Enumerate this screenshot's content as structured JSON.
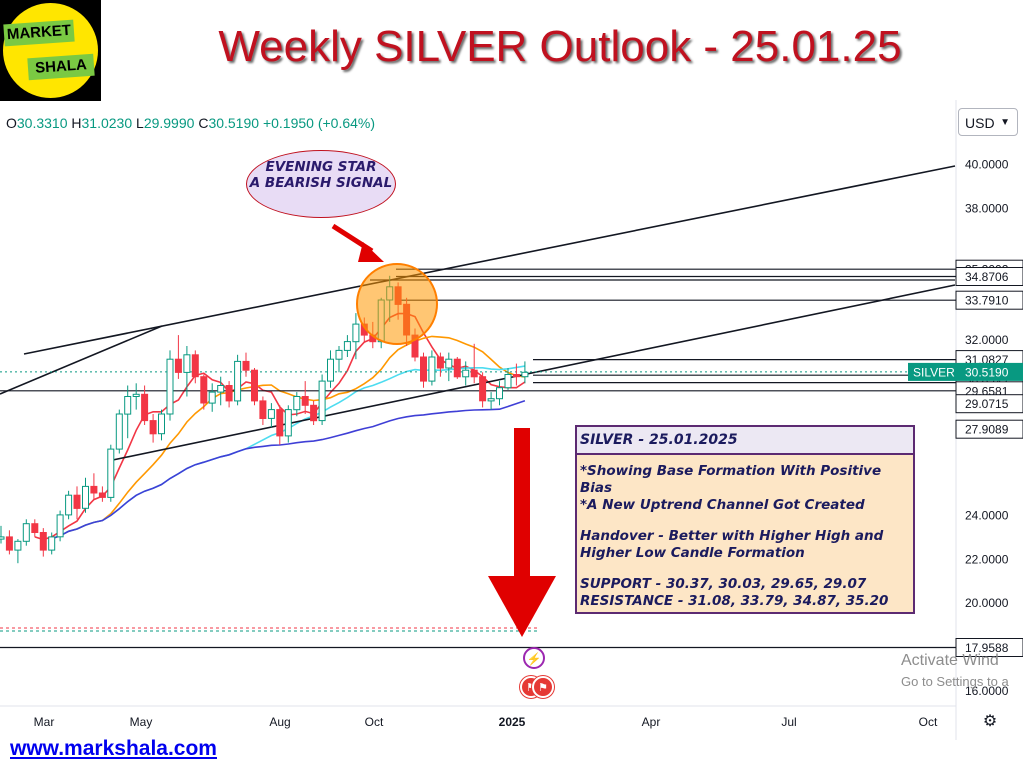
{
  "logo": {
    "line1": "MARKET",
    "line2": "SHALA"
  },
  "title": "Weekly SILVER Outlook - 25.01.25",
  "ohlc": {
    "o": "30.3310",
    "h": "31.0230",
    "l": "29.9990",
    "c": "30.5190",
    "chg": "+0.1950 (+0.64%)"
  },
  "currency": "USD",
  "website": "www.markshala.com",
  "activate": {
    "line1": "Activate Wind",
    "line2": "Go to Settings to a"
  },
  "note": {
    "line1": "EVENING STAR",
    "line2": "A BEARISH SIGNAL"
  },
  "infobox": {
    "header": "SILVER - 25.01.2025",
    "lines": [
      "*Showing Base Formation With Positive Bias",
      "*A New Uptrend Channel Got Created",
      "",
      "Handover - Better with Higher High and",
      "Higher Low Candle Formation",
      "",
      "SUPPORT - 30.37, 30.03, 29.65, 29.07",
      "RESISTANCE - 31.08, 33.79, 34.87, 35.20"
    ]
  },
  "chart_data": {
    "type": "candlestick",
    "symbol": "SILVER",
    "last_price": "30.5190",
    "x_ticks": [
      "Mar",
      "May",
      "Aug",
      "Oct",
      "2025",
      "Apr",
      "Jul",
      "Oct"
    ],
    "y_ticks": [
      "40.0000",
      "38.0000",
      "32.0000",
      "24.0000",
      "22.0000",
      "20.0000",
      "16.0000"
    ],
    "levels": [
      "35.2002",
      "34.8706",
      "33.7910",
      "31.0827",
      "30.3700",
      "30.0347",
      "29.6581",
      "29.0715",
      "27.9089",
      "17.9588"
    ],
    "ylim": [
      15.2,
      41
    ],
    "candles": [
      [
        22.9,
        23.5,
        22.7,
        23.0
      ],
      [
        23.0,
        23.3,
        22.2,
        22.4
      ],
      [
        22.4,
        22.9,
        21.8,
        22.8
      ],
      [
        22.8,
        23.8,
        22.6,
        23.6
      ],
      [
        23.6,
        23.8,
        23.0,
        23.2
      ],
      [
        23.2,
        23.4,
        22.1,
        22.4
      ],
      [
        22.4,
        23.2,
        22.2,
        23.0
      ],
      [
        23.0,
        24.2,
        22.8,
        24.0
      ],
      [
        24.0,
        25.1,
        23.8,
        24.9
      ],
      [
        24.9,
        25.3,
        23.8,
        24.3
      ],
      [
        24.3,
        25.7,
        24.1,
        25.3
      ],
      [
        25.3,
        25.9,
        24.7,
        25.0
      ],
      [
        25.0,
        25.3,
        24.6,
        24.8
      ],
      [
        24.8,
        27.2,
        24.6,
        27.0
      ],
      [
        27.0,
        28.8,
        26.8,
        28.6
      ],
      [
        28.6,
        29.9,
        27.5,
        29.4
      ],
      [
        29.4,
        30.0,
        28.8,
        29.5
      ],
      [
        29.5,
        29.9,
        28.1,
        28.3
      ],
      [
        28.3,
        28.6,
        27.3,
        27.7
      ],
      [
        27.7,
        28.8,
        27.4,
        28.6
      ],
      [
        28.6,
        31.5,
        28.3,
        31.1
      ],
      [
        31.1,
        32.2,
        30.2,
        30.5
      ],
      [
        30.5,
        31.7,
        29.4,
        31.3
      ],
      [
        31.3,
        31.5,
        30.0,
        30.3
      ],
      [
        30.3,
        30.4,
        28.8,
        29.1
      ],
      [
        29.1,
        30.0,
        28.7,
        29.6
      ],
      [
        29.6,
        30.3,
        29.0,
        29.9
      ],
      [
        29.9,
        30.1,
        28.9,
        29.2
      ],
      [
        29.2,
        31.3,
        29.0,
        31.0
      ],
      [
        31.0,
        31.4,
        30.3,
        30.6
      ],
      [
        30.6,
        30.7,
        29.0,
        29.2
      ],
      [
        29.2,
        29.4,
        28.1,
        28.4
      ],
      [
        28.4,
        29.1,
        28.0,
        28.8
      ],
      [
        28.8,
        29.0,
        27.2,
        27.6
      ],
      [
        27.6,
        29.0,
        27.3,
        28.8
      ],
      [
        28.8,
        29.6,
        28.5,
        29.4
      ],
      [
        29.4,
        30.1,
        28.6,
        29.0
      ],
      [
        29.0,
        29.2,
        28.1,
        28.3
      ],
      [
        28.3,
        30.4,
        28.1,
        30.1
      ],
      [
        30.1,
        31.5,
        29.8,
        31.1
      ],
      [
        31.1,
        31.7,
        30.5,
        31.5
      ],
      [
        31.5,
        32.2,
        31.2,
        31.9
      ],
      [
        31.9,
        33.2,
        31.1,
        32.7
      ],
      [
        32.7,
        33.0,
        31.9,
        32.2
      ],
      [
        32.2,
        32.8,
        31.6,
        31.9
      ],
      [
        31.9,
        33.9,
        31.6,
        33.8
      ],
      [
        33.8,
        34.9,
        32.8,
        34.4
      ],
      [
        34.4,
        34.6,
        32.9,
        33.6
      ],
      [
        33.6,
        33.9,
        31.7,
        32.2
      ],
      [
        32.2,
        32.5,
        31.0,
        31.2
      ],
      [
        31.2,
        31.4,
        29.8,
        30.1
      ],
      [
        30.1,
        31.5,
        29.9,
        31.2
      ],
      [
        31.2,
        31.4,
        30.3,
        30.7
      ],
      [
        30.7,
        31.4,
        30.1,
        31.1
      ],
      [
        31.1,
        31.2,
        30.2,
        30.3
      ],
      [
        30.3,
        31.0,
        29.9,
        30.6
      ],
      [
        30.6,
        31.8,
        30.0,
        30.3
      ],
      [
        30.3,
        30.5,
        28.9,
        29.2
      ],
      [
        29.2,
        29.6,
        28.8,
        29.3
      ],
      [
        29.3,
        30.1,
        29.0,
        29.8
      ],
      [
        29.8,
        30.7,
        29.7,
        30.4
      ],
      [
        30.4,
        30.9,
        29.9,
        30.3
      ],
      [
        30.3,
        31.0,
        30.0,
        30.5
      ]
    ]
  }
}
